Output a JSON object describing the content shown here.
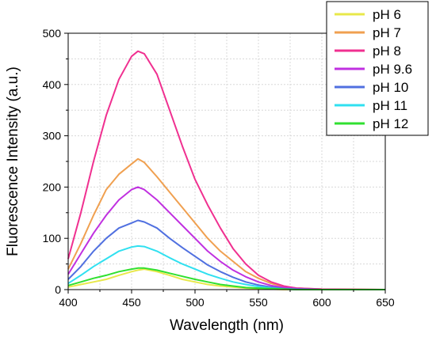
{
  "chart_data": {
    "type": "line",
    "xlabel": "Wavelength (nm)",
    "ylabel": "Fluorescence Intensity (a.u.)",
    "xlim": [
      400,
      650
    ],
    "ylim": [
      0,
      500
    ],
    "x_ticks": [
      400,
      450,
      500,
      550,
      600,
      650
    ],
    "y_ticks": [
      0,
      100,
      200,
      300,
      400,
      500
    ],
    "grid": true,
    "legend_position": "top-right",
    "x": [
      400,
      410,
      420,
      430,
      440,
      450,
      455,
      460,
      470,
      480,
      490,
      500,
      510,
      520,
      530,
      540,
      550,
      560,
      570,
      580,
      600,
      650
    ],
    "series": [
      {
        "name": "pH 6",
        "color": "#e8e84a",
        "values": [
          5,
          10,
          15,
          20,
          28,
          35,
          38,
          40,
          35,
          28,
          20,
          15,
          10,
          7,
          5,
          3,
          2,
          1,
          0,
          0,
          0,
          0
        ]
      },
      {
        "name": "pH 7",
        "color": "#f0a050",
        "values": [
          40,
          90,
          145,
          195,
          225,
          245,
          255,
          248,
          220,
          190,
          160,
          130,
          100,
          75,
          55,
          35,
          22,
          12,
          6,
          3,
          1,
          0
        ]
      },
      {
        "name": "pH 8",
        "color": "#f03090",
        "values": [
          60,
          150,
          250,
          340,
          410,
          455,
          465,
          460,
          420,
          350,
          280,
          215,
          165,
          120,
          80,
          50,
          28,
          15,
          7,
          3,
          1,
          0
        ]
      },
      {
        "name": "pH 9.6",
        "color": "#c030e0",
        "values": [
          30,
          70,
          110,
          145,
          175,
          195,
          200,
          195,
          175,
          150,
          125,
          100,
          75,
          55,
          38,
          25,
          15,
          8,
          4,
          2,
          0,
          0
        ]
      },
      {
        "name": "pH 10",
        "color": "#5070e0",
        "values": [
          20,
          45,
          75,
          100,
          120,
          130,
          135,
          132,
          120,
          100,
          82,
          65,
          48,
          35,
          24,
          15,
          9,
          5,
          2,
          1,
          0,
          0
        ]
      },
      {
        "name": "pH 11",
        "color": "#30e0f0",
        "values": [
          12,
          28,
          45,
          60,
          75,
          83,
          85,
          84,
          75,
          62,
          50,
          40,
          30,
          22,
          15,
          10,
          6,
          3,
          1,
          0,
          0,
          0
        ]
      },
      {
        "name": "pH 12",
        "color": "#30e030",
        "values": [
          8,
          15,
          22,
          28,
          35,
          40,
          42,
          42,
          38,
          32,
          26,
          20,
          15,
          10,
          7,
          4,
          3,
          2,
          1,
          0,
          0,
          0
        ]
      }
    ]
  }
}
